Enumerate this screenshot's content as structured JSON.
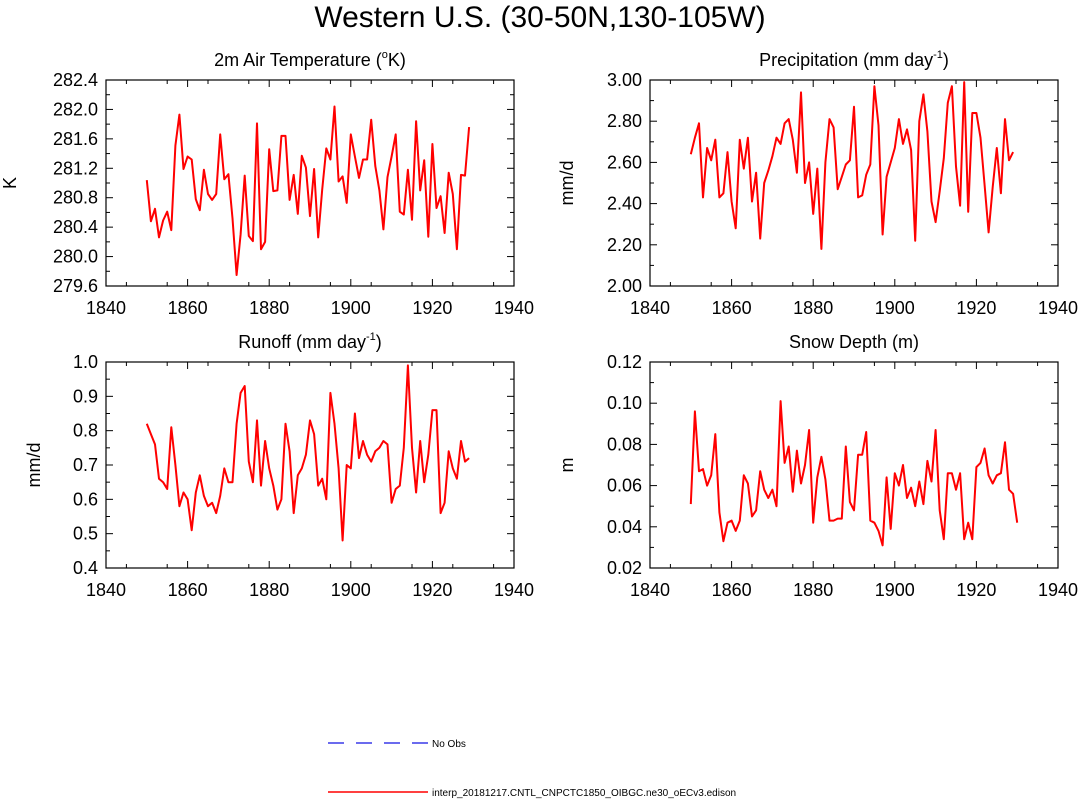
{
  "page": {
    "title": "Western U.S. (30-50N,130-105W)"
  },
  "colors": {
    "model": "#ff0000",
    "obs": "#3a3ae8",
    "axis": "#000000"
  },
  "legend": {
    "obs_label": "No Obs",
    "model_label": "interp_20181217.CNTL_CNPCTC1850_OIBGC.ne30_oECv3.edison"
  },
  "chart_data": [
    {
      "type": "line",
      "title": "2m Air Temperature (",
      "title_sup": "o",
      "title_suffix": "K)",
      "ylabel": "K",
      "xlim": [
        1840,
        1940
      ],
      "ylim": [
        279.6,
        282.4
      ],
      "xticks": [
        1840,
        1860,
        1880,
        1900,
        1920,
        1940
      ],
      "yticks": [
        279.6,
        280.0,
        280.4,
        280.8,
        281.2,
        281.6,
        282.0,
        282.4
      ],
      "ytick_labels": [
        "279.6",
        "280.0",
        "280.4",
        "280.8",
        "281.2",
        "281.6",
        "282.0",
        "282.4"
      ],
      "x_start": 1850,
      "series": [
        {
          "name": "interp_20181217.CNTL_CNPCTC1850_OIBGC.ne30_oECv3.edison",
          "values": [
            281.04,
            280.48,
            280.65,
            280.26,
            280.49,
            280.61,
            280.36,
            281.51,
            281.93,
            281.19,
            281.36,
            281.32,
            280.78,
            280.63,
            281.18,
            280.85,
            280.77,
            280.85,
            281.66,
            281.05,
            281.12,
            280.52,
            279.75,
            280.3,
            281.1,
            280.28,
            280.21,
            281.81,
            280.1,
            280.2,
            281.46,
            280.89,
            280.9,
            281.64,
            281.64,
            280.77,
            281.11,
            280.58,
            281.37,
            281.21,
            280.55,
            281.19,
            280.26,
            280.91,
            281.47,
            281.32,
            282.04,
            281.02,
            281.09,
            280.73,
            281.66,
            281.36,
            281.07,
            281.32,
            281.32,
            281.86,
            281.23,
            280.9,
            280.37,
            281.08,
            281.36,
            281.66,
            280.61,
            280.57,
            281.18,
            280.5,
            281.84,
            280.9,
            281.31,
            280.27,
            281.53,
            280.66,
            280.82,
            280.32,
            281.14,
            280.85,
            280.1,
            281.11,
            281.1,
            281.76
          ]
        }
      ]
    },
    {
      "type": "line",
      "title": "Precipitation (mm day",
      "title_sup": "-1",
      "title_suffix": ")",
      "ylabel": "mm/d",
      "xlim": [
        1840,
        1940
      ],
      "ylim": [
        2.0,
        3.0
      ],
      "xticks": [
        1840,
        1860,
        1880,
        1900,
        1920,
        1940
      ],
      "yticks": [
        2.0,
        2.2,
        2.4,
        2.6,
        2.8,
        3.0
      ],
      "ytick_labels": [
        "2.00",
        "2.20",
        "2.40",
        "2.60",
        "2.80",
        "3.00"
      ],
      "x_start": 1850,
      "series": [
        {
          "name": "interp_20181217.CNTL_CNPCTC1850_OIBGC.ne30_oECv3.edison",
          "values": [
            2.64,
            2.72,
            2.79,
            2.43,
            2.67,
            2.61,
            2.71,
            2.43,
            2.45,
            2.65,
            2.41,
            2.28,
            2.71,
            2.57,
            2.72,
            2.41,
            2.55,
            2.23,
            2.5,
            2.56,
            2.63,
            2.72,
            2.69,
            2.79,
            2.81,
            2.71,
            2.55,
            2.94,
            2.5,
            2.6,
            2.35,
            2.57,
            2.18,
            2.6,
            2.81,
            2.77,
            2.47,
            2.53,
            2.59,
            2.61,
            2.87,
            2.43,
            2.44,
            2.54,
            2.59,
            2.97,
            2.78,
            2.25,
            2.53,
            2.6,
            2.67,
            2.81,
            2.69,
            2.76,
            2.66,
            2.22,
            2.8,
            2.93,
            2.75,
            2.41,
            2.31,
            2.46,
            2.62,
            2.89,
            2.97,
            2.58,
            2.39,
            2.99,
            2.36,
            2.84,
            2.84,
            2.72,
            2.49,
            2.26,
            2.48,
            2.67,
            2.45,
            2.81,
            2.61,
            2.65
          ]
        }
      ]
    },
    {
      "type": "line",
      "title": "Runoff (mm day",
      "title_sup": "-1",
      "title_suffix": ")",
      "ylabel": "mm/d",
      "xlim": [
        1840,
        1940
      ],
      "ylim": [
        0.4,
        1.0
      ],
      "xticks": [
        1840,
        1860,
        1880,
        1900,
        1920,
        1940
      ],
      "yticks": [
        0.4,
        0.5,
        0.6,
        0.7,
        0.8,
        0.9,
        1.0
      ],
      "ytick_labels": [
        "0.4",
        "0.5",
        "0.6",
        "0.7",
        "0.8",
        "0.9",
        "1.0"
      ],
      "x_start": 1850,
      "series": [
        {
          "name": "interp_20181217.CNTL_CNPCTC1850_OIBGC.ne30_oECv3.edison",
          "values": [
            0.82,
            0.79,
            0.76,
            0.66,
            0.65,
            0.63,
            0.81,
            0.7,
            0.58,
            0.62,
            0.6,
            0.51,
            0.62,
            0.67,
            0.61,
            0.58,
            0.59,
            0.56,
            0.61,
            0.69,
            0.65,
            0.65,
            0.82,
            0.91,
            0.93,
            0.71,
            0.65,
            0.83,
            0.64,
            0.77,
            0.69,
            0.64,
            0.57,
            0.6,
            0.82,
            0.74,
            0.56,
            0.67,
            0.69,
            0.73,
            0.83,
            0.79,
            0.64,
            0.66,
            0.6,
            0.91,
            0.82,
            0.69,
            0.48,
            0.7,
            0.69,
            0.85,
            0.72,
            0.77,
            0.73,
            0.71,
            0.74,
            0.75,
            0.77,
            0.76,
            0.59,
            0.63,
            0.64,
            0.75,
            0.99,
            0.75,
            0.62,
            0.77,
            0.65,
            0.73,
            0.86,
            0.86,
            0.56,
            0.59,
            0.74,
            0.69,
            0.66,
            0.77,
            0.71,
            0.72
          ]
        }
      ]
    },
    {
      "type": "line",
      "title": "Snow Depth (m)",
      "title_sup": "",
      "title_suffix": "",
      "ylabel": "m",
      "xlim": [
        1840,
        1940
      ],
      "ylim": [
        0.02,
        0.12
      ],
      "xticks": [
        1840,
        1860,
        1880,
        1900,
        1920,
        1940
      ],
      "yticks": [
        0.02,
        0.04,
        0.06,
        0.08,
        0.1,
        0.12
      ],
      "ytick_labels": [
        "0.02",
        "0.04",
        "0.06",
        "0.08",
        "0.10",
        "0.12"
      ],
      "x_start": 1850,
      "series": [
        {
          "name": "interp_20181217.CNTL_CNPCTC1850_OIBGC.ne30_oECv3.edison",
          "values": [
            0.051,
            0.096,
            0.067,
            0.068,
            0.06,
            0.065,
            0.085,
            0.047,
            0.033,
            0.042,
            0.043,
            0.038,
            0.043,
            0.065,
            0.061,
            0.045,
            0.048,
            0.067,
            0.058,
            0.054,
            0.058,
            0.05,
            0.101,
            0.071,
            0.079,
            0.057,
            0.077,
            0.061,
            0.07,
            0.087,
            0.042,
            0.064,
            0.074,
            0.063,
            0.043,
            0.043,
            0.044,
            0.044,
            0.079,
            0.052,
            0.048,
            0.075,
            0.075,
            0.086,
            0.043,
            0.042,
            0.038,
            0.031,
            0.064,
            0.039,
            0.066,
            0.06,
            0.07,
            0.054,
            0.059,
            0.05,
            0.062,
            0.051,
            0.072,
            0.062,
            0.087,
            0.048,
            0.034,
            0.066,
            0.066,
            0.058,
            0.066,
            0.034,
            0.042,
            0.034,
            0.069,
            0.071,
            0.078,
            0.065,
            0.061,
            0.065,
            0.066,
            0.081,
            0.058,
            0.056,
            0.042
          ]
        }
      ]
    }
  ]
}
